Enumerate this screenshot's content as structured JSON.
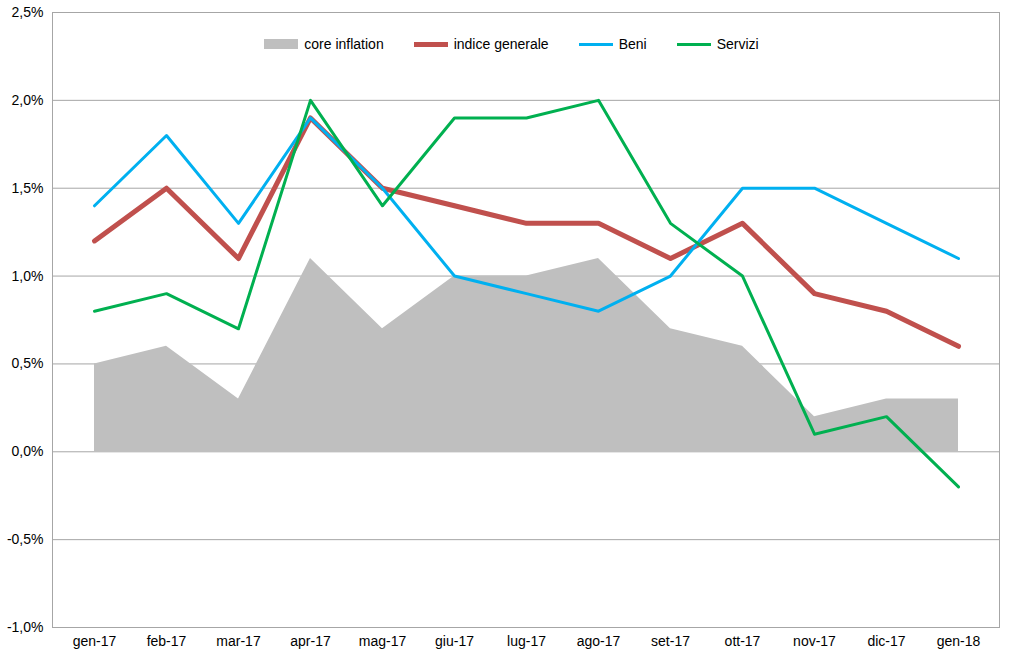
{
  "chart_data": {
    "type": "line",
    "categories": [
      "gen-17",
      "feb-17",
      "mar-17",
      "apr-17",
      "mag-17",
      "giu-17",
      "lug-17",
      "ago-17",
      "set-17",
      "ott-17",
      "nov-17",
      "dic-17",
      "gen-18"
    ],
    "series": [
      {
        "name": "core inflation",
        "type": "area",
        "color": "#bfbfbf",
        "values": [
          0.5,
          0.6,
          0.3,
          1.1,
          0.7,
          1.0,
          1.0,
          1.1,
          0.7,
          0.6,
          0.2,
          0.3,
          0.3
        ]
      },
      {
        "name": "indice generale",
        "type": "line",
        "color": "#c0504d",
        "values": [
          1.2,
          1.5,
          1.1,
          1.9,
          1.5,
          1.4,
          1.3,
          1.3,
          1.1,
          1.3,
          0.9,
          0.8,
          0.6
        ]
      },
      {
        "name": "Beni",
        "type": "line",
        "color": "#00b0f0",
        "values": [
          1.4,
          1.8,
          1.3,
          1.9,
          1.5,
          1.0,
          0.9,
          0.8,
          1.0,
          1.5,
          1.5,
          1.3,
          1.1
        ]
      },
      {
        "name": "Servizi",
        "type": "line",
        "color": "#00b050",
        "values": [
          0.8,
          0.9,
          0.7,
          2.0,
          1.4,
          1.9,
          1.9,
          2.0,
          1.3,
          1.0,
          0.1,
          0.2,
          -0.2
        ]
      }
    ],
    "ylim": [
      -1.0,
      2.5
    ],
    "yticks": [
      {
        "value": -1.0,
        "label": "-1,0%"
      },
      {
        "value": -0.5,
        "label": "-0,5%"
      },
      {
        "value": 0.0,
        "label": "0,0%"
      },
      {
        "value": 0.5,
        "label": "0,5%"
      },
      {
        "value": 1.0,
        "label": "1,0%"
      },
      {
        "value": 1.5,
        "label": "1,5%"
      },
      {
        "value": 2.0,
        "label": "2,0%"
      },
      {
        "value": 2.5,
        "label": "2,5%"
      }
    ],
    "grid": true,
    "legend": "top"
  }
}
